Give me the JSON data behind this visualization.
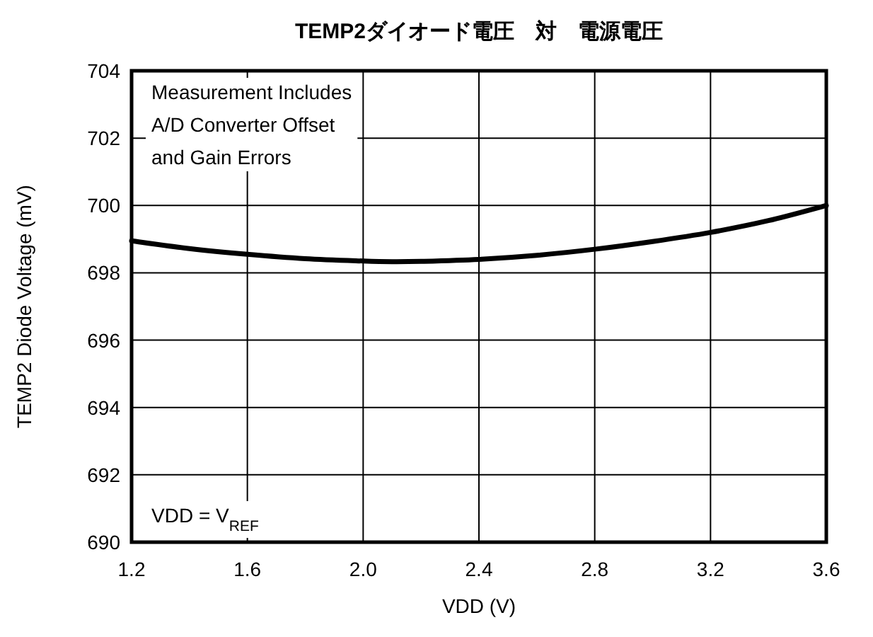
{
  "chart_data": {
    "type": "line",
    "title": "TEMP2ダイオード電圧　対　電源電圧",
    "xlabel": "VDD (V)",
    "ylabel": "TEMP2 Diode Voltage (mV)",
    "x": [
      1.2,
      1.4,
      1.6,
      1.8,
      2.0,
      2.1,
      2.2,
      2.4,
      2.6,
      2.8,
      3.0,
      3.2,
      3.4,
      3.6
    ],
    "series": [
      {
        "color": "#000000",
        "values": [
          698.95,
          698.72,
          698.55,
          698.42,
          698.35,
          698.33,
          698.34,
          698.4,
          698.52,
          698.7,
          698.93,
          699.2,
          699.55,
          700.0
        ]
      }
    ],
    "xlim": [
      1.2,
      3.6
    ],
    "xticks": [
      {
        "value": 1.2,
        "label": "1.2"
      },
      1.6,
      {
        "value": 2.0,
        "label": "2.0"
      },
      2.4,
      2.8,
      3.2,
      3.6
    ],
    "ylim": [
      690,
      704
    ],
    "yticks": [
      690,
      692,
      694,
      696,
      698,
      700,
      702,
      704
    ],
    "grid": true,
    "line_style": "solid",
    "marker": "none",
    "annotations": [
      "Measurement Includes\nA/D Converter Offset\nand Gain Errors",
      "VDD = V$_{REF}$"
    ]
  }
}
